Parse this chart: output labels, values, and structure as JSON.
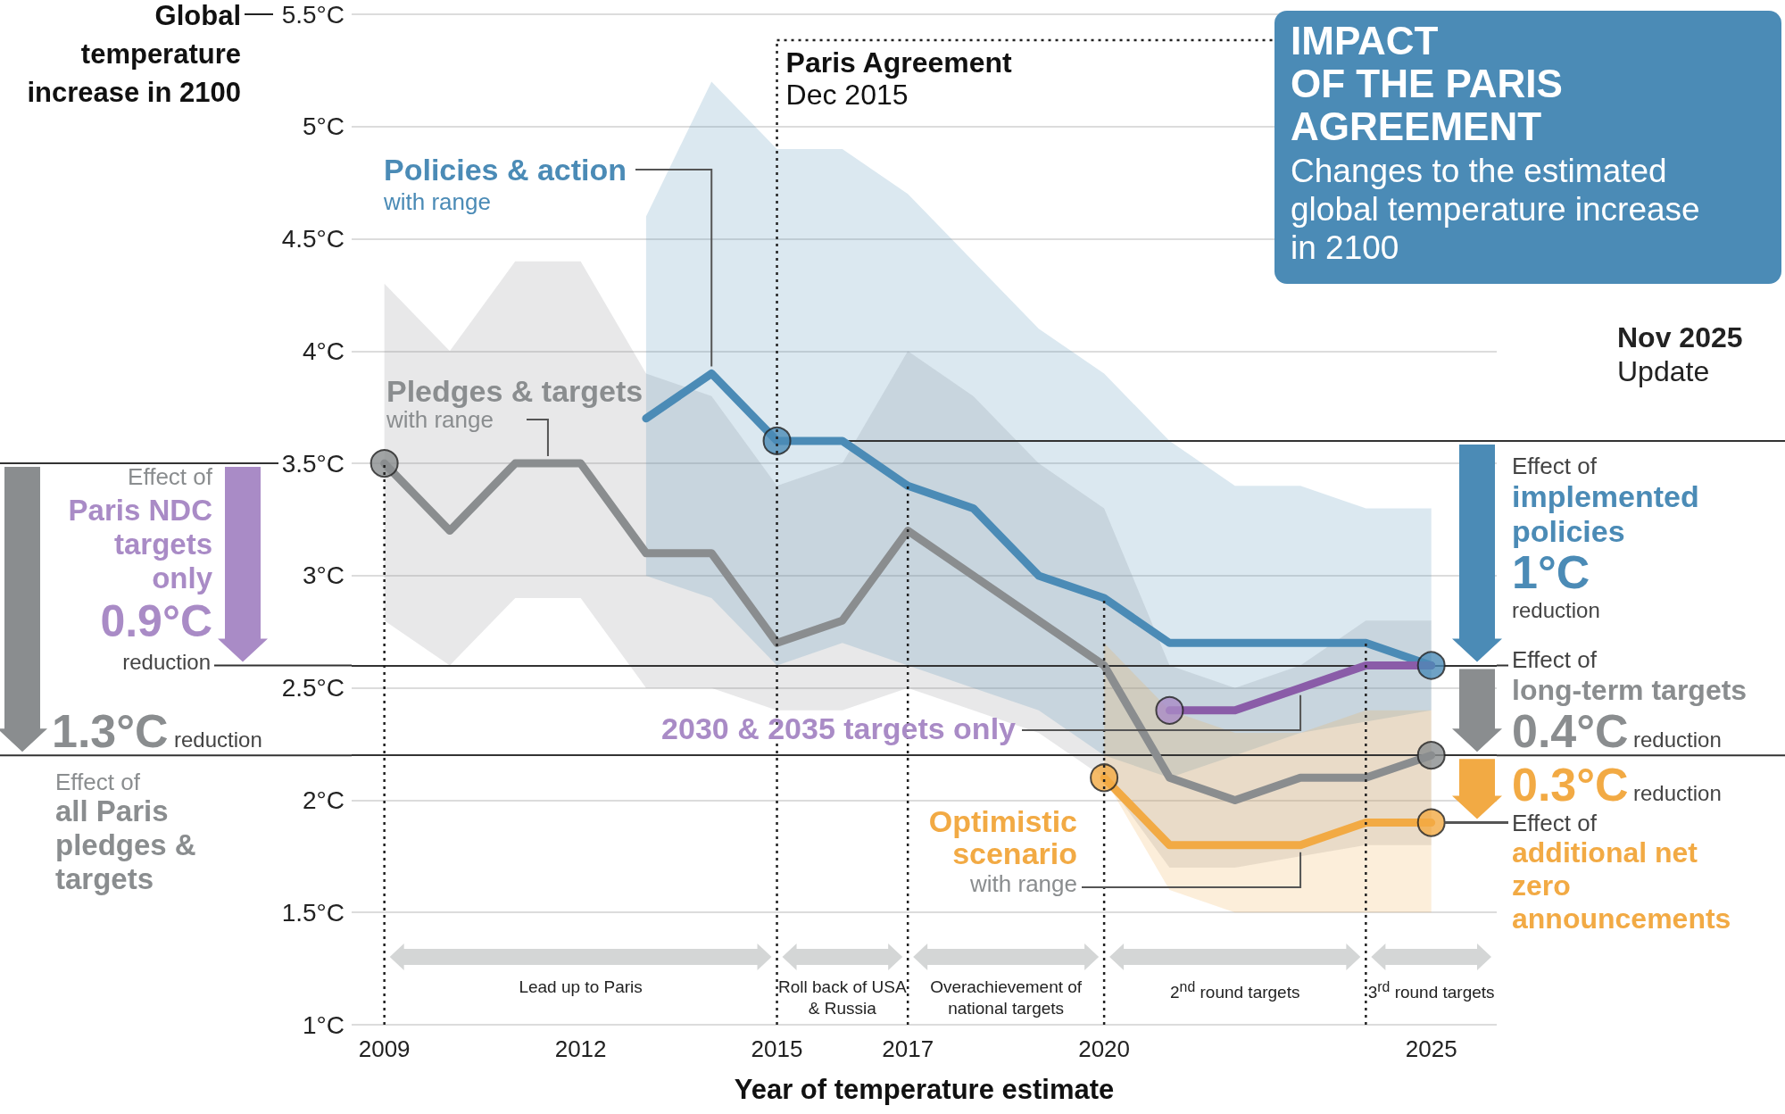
{
  "chart_data": {
    "type": "line",
    "title": "IMPACT\nOF THE PARIS\nAGREEMENT",
    "subtitle": "Changes to the estimated global temperature increase in 2100",
    "xlabel": "Year of temperature estimate",
    "ylabel": "Global temperature increase in 2100",
    "xlim": [
      2008.5,
      2026
    ],
    "xticks": [
      2009,
      2012,
      2015,
      2017,
      2020,
      2025
    ],
    "ylim": [
      1,
      5.5
    ],
    "yticks": [
      {
        "value": 1,
        "label": "1°C"
      },
      {
        "value": 1.5,
        "label": "1.5°C"
      },
      {
        "value": 2,
        "label": "2°C"
      },
      {
        "value": 2.5,
        "label": "2.5°C"
      },
      {
        "value": 3,
        "label": "3°C"
      },
      {
        "value": 3.5,
        "label": "3.5°C"
      },
      {
        "value": 4,
        "label": "4°C"
      },
      {
        "value": 4.5,
        "label": "4.5°C"
      },
      {
        "value": 5,
        "label": "5°C"
      },
      {
        "value": 5.5,
        "label": "5.5°C"
      }
    ],
    "grid": "y",
    "legend": false,
    "series": [
      {
        "name": "Pledges & targets",
        "color": "#8a8d8f",
        "x": [
          2009,
          2010,
          2011,
          2012,
          2013,
          2014,
          2015,
          2016,
          2017,
          2018,
          2019,
          2020,
          2021,
          2022,
          2023,
          2024,
          2025
        ],
        "values": [
          3.5,
          3.2,
          3.5,
          3.5,
          3.1,
          3.1,
          2.7,
          2.8,
          3.2,
          3.0,
          2.8,
          2.6,
          2.1,
          2.0,
          2.1,
          2.1,
          2.2
        ],
        "upper": [
          4.3,
          4.0,
          4.4,
          4.4,
          3.9,
          3.8,
          3.4,
          3.5,
          4.0,
          3.8,
          3.5,
          3.3,
          2.6,
          2.5,
          2.6,
          2.8,
          2.8
        ],
        "lower": [
          2.8,
          2.6,
          2.9,
          2.9,
          2.5,
          2.5,
          2.4,
          2.4,
          2.5,
          2.4,
          2.3,
          2.1,
          1.7,
          1.7,
          1.75,
          1.8,
          1.8
        ]
      },
      {
        "name": "Policies & action",
        "color": "#4b8bb6",
        "x": [
          2013,
          2014,
          2015,
          2016,
          2017,
          2018,
          2019,
          2020,
          2021,
          2022,
          2023,
          2024,
          2025
        ],
        "values": [
          3.7,
          3.9,
          3.6,
          3.6,
          3.4,
          3.3,
          3.0,
          2.9,
          2.7,
          2.7,
          2.7,
          2.7,
          2.6
        ],
        "upper": [
          4.6,
          5.2,
          4.9,
          4.9,
          4.7,
          4.4,
          4.1,
          3.9,
          3.6,
          3.4,
          3.4,
          3.3,
          3.3
        ],
        "lower": [
          3.0,
          2.9,
          2.6,
          2.7,
          2.6,
          2.5,
          2.4,
          2.2,
          2.1,
          2.2,
          2.3,
          2.35,
          2.4
        ]
      },
      {
        "name": "Optimistic scenario",
        "color": "#f2aa44",
        "x": [
          2020,
          2021,
          2022,
          2023,
          2024,
          2025
        ],
        "values": [
          2.1,
          1.8,
          1.8,
          1.8,
          1.9,
          1.9
        ],
        "upper": [
          2.7,
          2.4,
          2.3,
          2.3,
          2.4,
          2.4
        ],
        "lower": [
          2.1,
          1.6,
          1.5,
          1.5,
          1.5,
          1.5
        ]
      },
      {
        "name": "2030 & 2035 targets only",
        "color": "#8a5ca8",
        "x": [
          2021,
          2022,
          2023,
          2024,
          2025
        ],
        "values": [
          2.4,
          2.4,
          2.5,
          2.6,
          2.6
        ]
      },
      {
        "type": "scatter",
        "marker": "circle",
        "x": [
          2009,
          2015,
          2020,
          2021,
          2025,
          2025,
          2025
        ],
        "values": [
          3.5,
          3.6,
          2.1,
          2.4,
          2.6,
          2.2,
          1.9
        ],
        "colors": [
          "#8a8d8f",
          "#4b8bb6",
          "#f2aa44",
          "#a98bc6",
          "#4b8bb6",
          "#8a8d8f",
          "#f2aa44"
        ]
      }
    ],
    "ref_lines": [
      {
        "axis": "y",
        "value": 3.6,
        "line_style": "solid"
      },
      {
        "axis": "y",
        "value": 2.6,
        "line_style": "solid"
      },
      {
        "axis": "y",
        "value": 2.2,
        "line_style": "solid"
      },
      {
        "axis": "x",
        "value": 2009,
        "line_style": "dotted"
      },
      {
        "axis": "x",
        "value": 2015,
        "label": "Paris Agreement\nDec 2015",
        "line_style": "dotted"
      },
      {
        "axis": "x",
        "value": 2017,
        "line_style": "dotted"
      },
      {
        "axis": "x",
        "value": 2020,
        "line_style": "dotted"
      },
      {
        "axis": "x",
        "value": 2024,
        "line_style": "dotted"
      }
    ],
    "annotations": [
      "with range",
      {
        "text": "with range",
        "x": 2011.5,
        "y": 3.5
      },
      {
        "text": "with range",
        "x": 2023,
        "y": 1.8
      },
      "Effect of",
      "Paris NDC targets only",
      "0.9°C",
      "reduction",
      "1.3°C",
      "reduction",
      "Effect of",
      "all Paris pledges & targets",
      "Effect of",
      "implemented policies",
      "1°C",
      "reduction",
      "Effect of",
      "long-term targets",
      "0.4°C",
      "reduction",
      "0.3°C",
      "reduction",
      "Effect of",
      "additional net zero announcements",
      "Nov 2025",
      "Update",
      "Lead up to Paris",
      "Roll back of USA & Russia",
      "Overachievement of national targets",
      "2$^{nd}$ round targets",
      "3$^{rd}$ round targets"
    ]
  }
}
